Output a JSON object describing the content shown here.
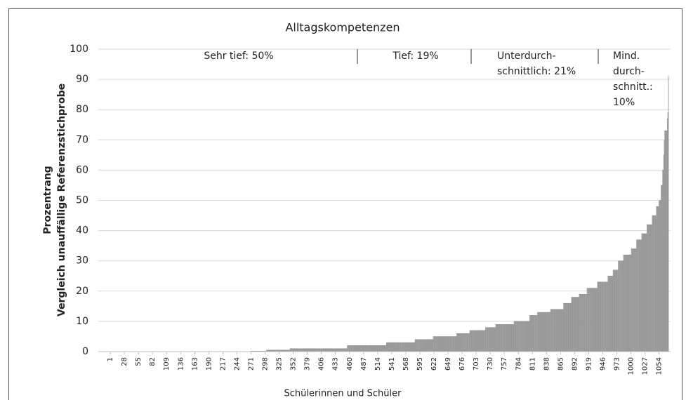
{
  "chart_data": {
    "type": "bar",
    "title": "Alltagskompetenzen",
    "xlabel": "Schülerinnen und Schüler",
    "ylabel": [
      "Prozentrang",
      "Vergleich unauffällige Referenzstichprobe"
    ],
    "annotations": [
      [
        "Sehr tief: 50%"
      ],
      [
        "Tief: 19%"
      ],
      [
        "Unterdurch-",
        "schnittlich: 21%"
      ],
      [
        "Mind.",
        "durch-",
        "schnitt.:",
        "10%"
      ]
    ],
    "color": "#a6a6a6",
    "grid": true,
    "ylim": [
      0,
      100
    ],
    "yticks": [
      0,
      10,
      20,
      30,
      40,
      50,
      60,
      70,
      80,
      90,
      100
    ],
    "xlim": [
      -22,
      1076
    ],
    "xticks": [
      1,
      28,
      55,
      82,
      109,
      136,
      163,
      190,
      217,
      244,
      271,
      298,
      325,
      352,
      379,
      406,
      433,
      460,
      487,
      514,
      541,
      568,
      595,
      622,
      649,
      676,
      703,
      730,
      757,
      784,
      811,
      838,
      865,
      892,
      919,
      946,
      973,
      1000,
      1027,
      1054
    ],
    "values": [
      0,
      0,
      0,
      0,
      0,
      0,
      0,
      0,
      0,
      0,
      0,
      0,
      0,
      0,
      0,
      0,
      0,
      0,
      0,
      0,
      0,
      0,
      0,
      0,
      0,
      0,
      0,
      0,
      0,
      0,
      0,
      0,
      0,
      0,
      0,
      0,
      0,
      0,
      0,
      0,
      0,
      0,
      0,
      0,
      0,
      0,
      0,
      0,
      0,
      0,
      0,
      0,
      0,
      0,
      0,
      0,
      0,
      0,
      0,
      0,
      0,
      0,
      0,
      0,
      0,
      0,
      0,
      0,
      0,
      0,
      0,
      0,
      0,
      0,
      0,
      0,
      0,
      0,
      0,
      0,
      0,
      0,
      0,
      0,
      0,
      0,
      0,
      0,
      0,
      0,
      0,
      0,
      0,
      0,
      0,
      0,
      0,
      0,
      0,
      0,
      0,
      0,
      0,
      0,
      0,
      0,
      0,
      0,
      0,
      0,
      0,
      0,
      0,
      0,
      0,
      0,
      0,
      0,
      0,
      0,
      0,
      0,
      0,
      0,
      0,
      0,
      0,
      0,
      0,
      0,
      0,
      0,
      0,
      0,
      0,
      0,
      0,
      0,
      0,
      0,
      0,
      0,
      0,
      0,
      0,
      0,
      0,
      0,
      0,
      0,
      0,
      0,
      0,
      0,
      0,
      0,
      0,
      0,
      0,
      0,
      0,
      0,
      0,
      0,
      0,
      0,
      0,
      0,
      0,
      0,
      0,
      0,
      0,
      0,
      0,
      0,
      0,
      0,
      0,
      0,
      0,
      0,
      0,
      0,
      0,
      0,
      0,
      0,
      0,
      0,
      0,
      0,
      0,
      0,
      0,
      0,
      0,
      0,
      0,
      0,
      0,
      0,
      0,
      0,
      0,
      0,
      0,
      0,
      0,
      0,
      0,
      0,
      0,
      0,
      0,
      0,
      0,
      0,
      0,
      0,
      0,
      0,
      0,
      0,
      0,
      0,
      0,
      0,
      0,
      0,
      0,
      0,
      0,
      0,
      0,
      0,
      0,
      0,
      0,
      0,
      0,
      0,
      0,
      0,
      0,
      0,
      0,
      0,
      0,
      0,
      0,
      0,
      0,
      0,
      0,
      0,
      0,
      0,
      0,
      0,
      0,
      0,
      0,
      0,
      0,
      0,
      0,
      0,
      0,
      0,
      0.2,
      0.2,
      0.2,
      0.2,
      0.2,
      0.2,
      0.2,
      0.2,
      0.2,
      0.2,
      0.2,
      0.2,
      0.2,
      0.2,
      0.2,
      0.2,
      0.2,
      0.2,
      0.2,
      0.2,
      0.2,
      0.2,
      0.2,
      0.2,
      0.2,
      0.2,
      0.2,
      0.2,
      0.2,
      0.2,
      0.5,
      0.5,
      0.5,
      0.5,
      0.5,
      0.5,
      0.5,
      0.5,
      0.5,
      0.5,
      0.5,
      0.5,
      0.5,
      0.5,
      0.5,
      0.5,
      0.5,
      0.5,
      0.5,
      0.5,
      0.5,
      0.5,
      0.5,
      0.5,
      0.5,
      0.5,
      0.5,
      0.5,
      0.5,
      0.5,
      0.5,
      0.5,
      0.5,
      0.5,
      0.5,
      0.5,
      0.5,
      0.5,
      0.5,
      0.5,
      0.5,
      0.5,
      0.5,
      0.5,
      0.5,
      1,
      1,
      1,
      1,
      1,
      1,
      1,
      1,
      1,
      1,
      1,
      1,
      1,
      1,
      1,
      1,
      1,
      1,
      1,
      1,
      1,
      1,
      1,
      1,
      1,
      1,
      1,
      1,
      1,
      1,
      1,
      1,
      1,
      1,
      1,
      1,
      1,
      1,
      1,
      1,
      1,
      1,
      1,
      1,
      1,
      1,
      1,
      1,
      1,
      1,
      1,
      1,
      1,
      1,
      1,
      1,
      1,
      1,
      1,
      1,
      1,
      1,
      1,
      1,
      1,
      1,
      1,
      1,
      1,
      1,
      1,
      1,
      1,
      1,
      1,
      1,
      1,
      1,
      1,
      1,
      1,
      1,
      1,
      1,
      1,
      1,
      1,
      1,
      1,
      1,
      1,
      1,
      1,
      1,
      1,
      1,
      1,
      1,
      1,
      1,
      1,
      1,
      1,
      1,
      1,
      1,
      1,
      1,
      1,
      1,
      2,
      2,
      2,
      2,
      2,
      2,
      2,
      2,
      2,
      2,
      2,
      2,
      2,
      2,
      2,
      2,
      2,
      2,
      2,
      2,
      2,
      2,
      2,
      2,
      2,
      2,
      2,
      2,
      2,
      2,
      2,
      2,
      2,
      2,
      2,
      2,
      2,
      2,
      2,
      2,
      2,
      2,
      2,
      2,
      2,
      2,
      2,
      2,
      2,
      2,
      2,
      2,
      2,
      2,
      2,
      2,
      2,
      2,
      2,
      2,
      2,
      2,
      2,
      2,
      2,
      2,
      2,
      2,
      2,
      2,
      2,
      2,
      2,
      2,
      2,
      3,
      3,
      3,
      3,
      3,
      3,
      3,
      3,
      3,
      3,
      3,
      3,
      3,
      3,
      3,
      3,
      3,
      3,
      3,
      3,
      3,
      3,
      3,
      3,
      3,
      3,
      3,
      3,
      3,
      3,
      3,
      3,
      3,
      3,
      3,
      3,
      3,
      3,
      3,
      3,
      3,
      3,
      3,
      3,
      3,
      3,
      3,
      3,
      3,
      3,
      3,
      3,
      3,
      3,
      3,
      4,
      4,
      4,
      4,
      4,
      4,
      4,
      4,
      4,
      4,
      4,
      4,
      4,
      4,
      4,
      4,
      4,
      4,
      4,
      4,
      4,
      4,
      4,
      4,
      4,
      4,
      4,
      4,
      4,
      4,
      4,
      4,
      4,
      4,
      4,
      5,
      5,
      5,
      5,
      5,
      5,
      5,
      5,
      5,
      5,
      5,
      5,
      5,
      5,
      5,
      5,
      5,
      5,
      5,
      5,
      5,
      5,
      5,
      5,
      5,
      5,
      5,
      5,
      5,
      5,
      5,
      5,
      5,
      5,
      5,
      5,
      5,
      5,
      5,
      5,
      5,
      5,
      5,
      5,
      5,
      6,
      6,
      6,
      6,
      6,
      6,
      6,
      6,
      6,
      6,
      6,
      6,
      6,
      6,
      6,
      6,
      6,
      6,
      6,
      6,
      6,
      6,
      6,
      6,
      6,
      7,
      7,
      7,
      7,
      7,
      7,
      7,
      7,
      7,
      7,
      7,
      7,
      7,
      7,
      7,
      7,
      7,
      7,
      7,
      7,
      7,
      7,
      7,
      7,
      7,
      7,
      7,
      7,
      7,
      7,
      8,
      8,
      8,
      8,
      8,
      8,
      8,
      8,
      8,
      8,
      8,
      8,
      8,
      8,
      8,
      8,
      8,
      8,
      8,
      8,
      9,
      9,
      9,
      9,
      9,
      9,
      9,
      9,
      9,
      9,
      9,
      9,
      9,
      9,
      9,
      9,
      9,
      9,
      9,
      9,
      9,
      9,
      9,
      9,
      9,
      9,
      9,
      9,
      9,
      9,
      9,
      9,
      9,
      9,
      9,
      10,
      10,
      10,
      10,
      10,
      10,
      10,
      10,
      10,
      10,
      10,
      10,
      10,
      10,
      10,
      10,
      10,
      10,
      10,
      10,
      10,
      10,
      10,
      10,
      10,
      10,
      10,
      10,
      10,
      10,
      12,
      12,
      12,
      12,
      12,
      12,
      12,
      12,
      12,
      12,
      12,
      12,
      12,
      12,
      12,
      13,
      13,
      13,
      13,
      13,
      13,
      13,
      13,
      13,
      13,
      13,
      13,
      13,
      13,
      13,
      13,
      13,
      13,
      13,
      13,
      13,
      13,
      13,
      13,
      13,
      14,
      14,
      14,
      14,
      14,
      14,
      14,
      14,
      14,
      14,
      14,
      14,
      14,
      14,
      14,
      14,
      14,
      14,
      14,
      14,
      14,
      14,
      14,
      14,
      14,
      16,
      16,
      16,
      16,
      16,
      16,
      16,
      16,
      16,
      16,
      16,
      16,
      16,
      16,
      16,
      18,
      18,
      18,
      18,
      18,
      18,
      18,
      18,
      18,
      18,
      18,
      18,
      18,
      18,
      18,
      19,
      19,
      19,
      19,
      19,
      19,
      19,
      19,
      19,
      19,
      19,
      19,
      19,
      19,
      19,
      21,
      21,
      21,
      21,
      21,
      21,
      21,
      21,
      21,
      21,
      21,
      21,
      21,
      21,
      21,
      21,
      21,
      21,
      21,
      21,
      23,
      23,
      23,
      23,
      23,
      23,
      23,
      23,
      23,
      23,
      23,
      23,
      23,
      23,
      23,
      23,
      23,
      23,
      23,
      23,
      25,
      25,
      25,
      25,
      25,
      25,
      25,
      25,
      25,
      25,
      27,
      27,
      27,
      27,
      27,
      27,
      27,
      27,
      27,
      27,
      30,
      30,
      30,
      30,
      30,
      30,
      30,
      30,
      30,
      30,
      32,
      32,
      32,
      32,
      32,
      32,
      32,
      32,
      32,
      32,
      32,
      32,
      32,
      32,
      32,
      34,
      34,
      34,
      34,
      34,
      34,
      34,
      34,
      34,
      34,
      37,
      37,
      37,
      37,
      37,
      37,
      37,
      37,
      37,
      37,
      39,
      39,
      39,
      39,
      39,
      39,
      39,
      39,
      39,
      39,
      42,
      42,
      42,
      42,
      42,
      42,
      42,
      42,
      42,
      42,
      45,
      45,
      45,
      45,
      45,
      45,
      45,
      45,
      48,
      48,
      48,
      48,
      48,
      50,
      50,
      50,
      50,
      55,
      55,
      55,
      60,
      60,
      65,
      70,
      73,
      73,
      73,
      73,
      73,
      77,
      79,
      91
    ]
  }
}
